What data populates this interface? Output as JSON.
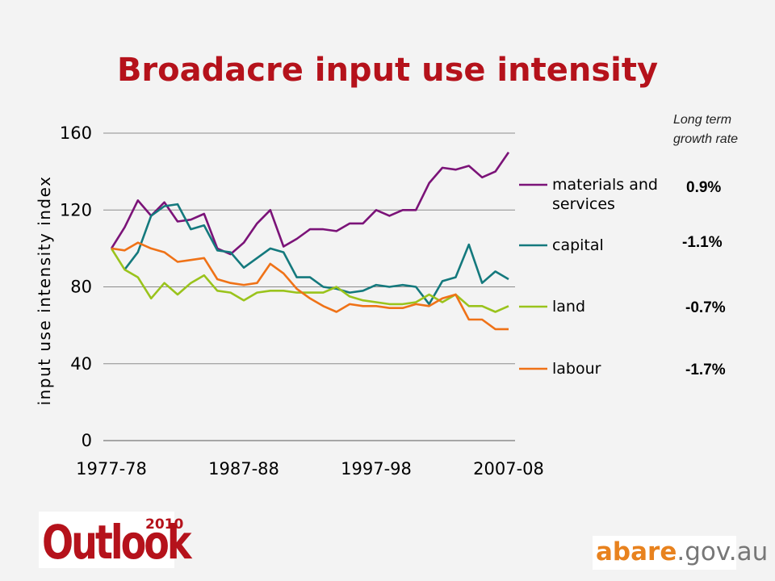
{
  "title": "Broadacre input use intensity",
  "note": [
    "Long term",
    "growth rate"
  ],
  "chart_data": {
    "type": "line",
    "ylabel": "input use intensity index",
    "xlabel": "",
    "ylim": [
      0,
      160
    ],
    "yticks": [
      0,
      40,
      80,
      120,
      160
    ],
    "xtick_labels": [
      "1977-78",
      "1987-88",
      "1997-98",
      "2007-08"
    ],
    "grid": true,
    "legend": "right",
    "categories": [
      "1977-78",
      "1978-79",
      "1979-80",
      "1980-81",
      "1981-82",
      "1982-83",
      "1983-84",
      "1984-85",
      "1985-86",
      "1986-87",
      "1987-88",
      "1988-89",
      "1989-90",
      "1990-91",
      "1991-92",
      "1992-93",
      "1993-94",
      "1994-95",
      "1995-96",
      "1996-97",
      "1997-98",
      "1998-99",
      "1999-00",
      "2000-01",
      "2001-02",
      "2002-03",
      "2003-04",
      "2004-05",
      "2005-06",
      "2006-07",
      "2007-08"
    ],
    "series": [
      {
        "name": "materials and services",
        "rate": "0.9%",
        "color": "#7b1378",
        "values": [
          100,
          111,
          125,
          117,
          124,
          114,
          115,
          118,
          100,
          97,
          103,
          113,
          120,
          101,
          105,
          110,
          110,
          109,
          113,
          113,
          120,
          117,
          120,
          120,
          134,
          142,
          141,
          143,
          137,
          140,
          150
        ]
      },
      {
        "name": "capital",
        "rate": "-1.1%",
        "color": "#14797d",
        "values": [
          null,
          89,
          98,
          117,
          122,
          123,
          110,
          112,
          99,
          98,
          90,
          95,
          100,
          98,
          85,
          85,
          80,
          79,
          77,
          78,
          81,
          80,
          81,
          80,
          71,
          83,
          85,
          102,
          82,
          88,
          84
        ]
      },
      {
        "name": "land",
        "rate": "-0.7%",
        "color": "#9ac31c",
        "values": [
          100,
          89,
          85,
          74,
          82,
          76,
          82,
          86,
          78,
          77,
          73,
          77,
          78,
          78,
          77,
          77,
          77,
          80,
          75,
          73,
          72,
          71,
          71,
          72,
          76,
          72,
          76,
          70,
          70,
          67,
          70
        ]
      },
      {
        "name": "labour",
        "rate": "-1.7%",
        "color": "#ef7217",
        "values": [
          100,
          99,
          103,
          100,
          98,
          93,
          94,
          95,
          84,
          82,
          81,
          82,
          92,
          87,
          79,
          74,
          70,
          67,
          71,
          70,
          70,
          69,
          69,
          71,
          70,
          74,
          76,
          63,
          63,
          58,
          58
        ]
      }
    ]
  },
  "logos": {
    "outlook_word": "Outlook",
    "outlook_year": "2010",
    "abare_a": "abare",
    "abare_b": ".gov.au"
  }
}
